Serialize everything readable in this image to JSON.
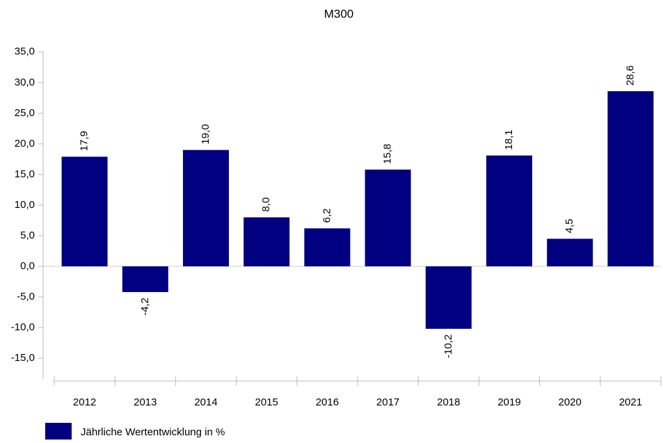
{
  "chart_data": {
    "type": "bar",
    "title": "M300",
    "categories": [
      "2012",
      "2013",
      "2014",
      "2015",
      "2016",
      "2017",
      "2018",
      "2019",
      "2020",
      "2021"
    ],
    "values": [
      17.9,
      -4.2,
      19.0,
      8.0,
      6.2,
      15.8,
      -10.2,
      18.1,
      4.5,
      28.6
    ],
    "value_labels": [
      "17,9",
      "-4,2",
      "19,0",
      "8,0",
      "6,2",
      "15,8",
      "-10,2",
      "18,1",
      "4,5",
      "28,6"
    ],
    "color": "#000080",
    "series_name": "Jährliche Wertentwicklung in %",
    "ylim": [
      -18.4,
      35.2
    ],
    "yticks": [
      {
        "value": 35,
        "label": "35,0"
      },
      {
        "value": 30,
        "label": "30,0"
      },
      {
        "value": 25,
        "label": "25,0"
      },
      {
        "value": 20,
        "label": "20,0"
      },
      {
        "value": 15,
        "label": "15,0"
      },
      {
        "value": 10,
        "label": "10,0"
      },
      {
        "value": 5,
        "label": "5,0"
      },
      {
        "value": 0,
        "label": "0,0"
      },
      {
        "value": -5,
        "label": "-5,0"
      },
      {
        "value": -10,
        "label": "-10,0"
      },
      {
        "value": -15,
        "label": "-15,0"
      }
    ],
    "grid": false,
    "legend": "bottom-left"
  }
}
